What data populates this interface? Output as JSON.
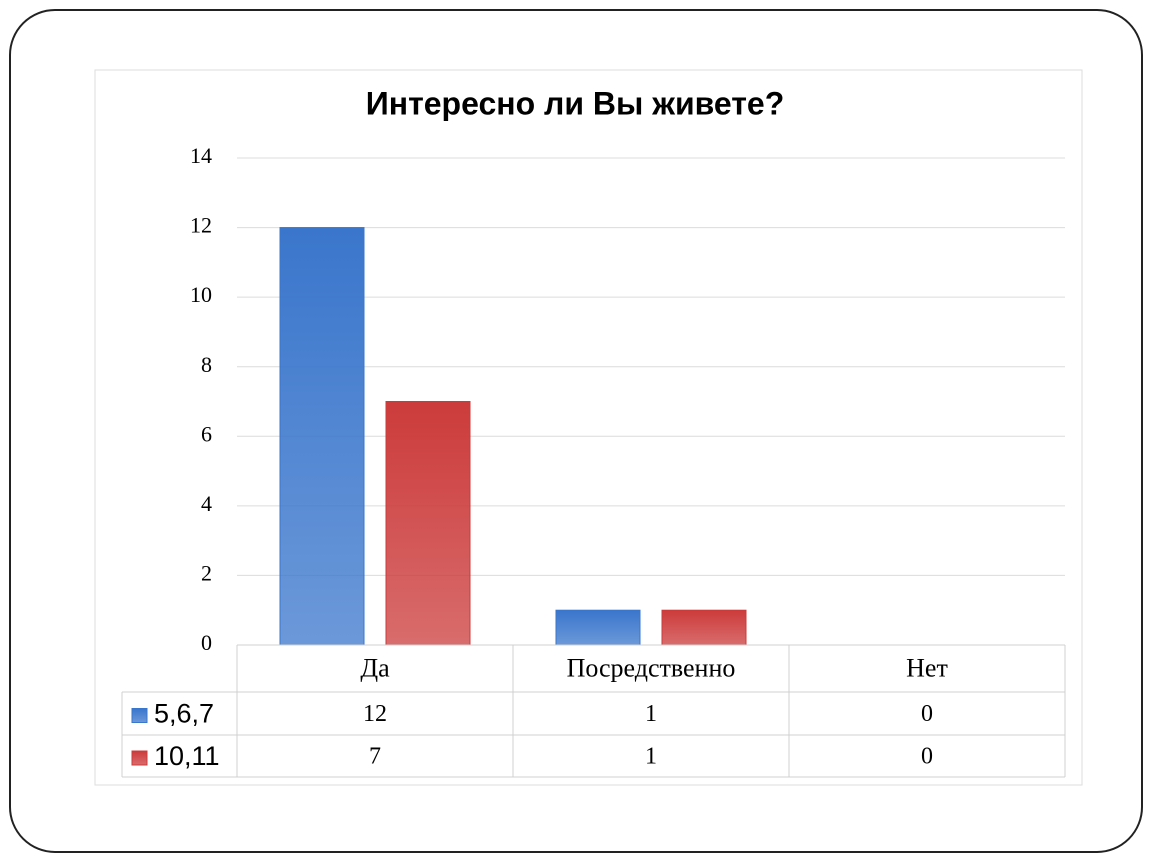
{
  "chart_data": {
    "type": "bar",
    "title": "Интересно ли Вы живете?",
    "categories": [
      "Да",
      "Посредственно",
      "Нет"
    ],
    "series": [
      {
        "name": "5,6,7",
        "color": "#3a76cc",
        "values": [
          12,
          1,
          0
        ]
      },
      {
        "name": "10,11",
        "color": "#cc3b3b",
        "values": [
          7,
          1,
          0
        ]
      }
    ],
    "ylim": [
      0,
      14
    ],
    "yticks": [
      0,
      2,
      4,
      6,
      8,
      10,
      12,
      14
    ],
    "grid": true
  }
}
